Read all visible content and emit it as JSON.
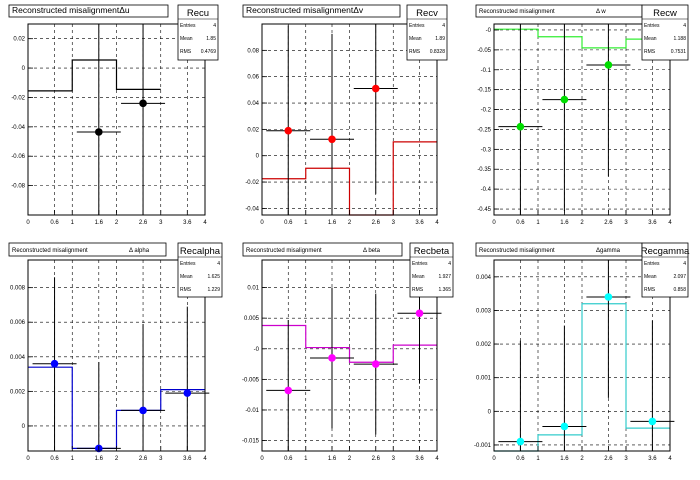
{
  "chart_data": [
    {
      "type": "scatter",
      "title": "Reconstructed misalignmentΔu",
      "stats": {
        "name": "Recu",
        "entries_label": "Entries",
        "entries": "4",
        "mean_label": "Mean",
        "mean": "1.85",
        "rms_label": "RMS",
        "rms": "0.4769"
      },
      "xlim": [
        0,
        4
      ],
      "ylim": [
        -0.1,
        0.03
      ],
      "xticks": [
        "0",
        "0.6",
        "1",
        "1.6",
        "2",
        "2.6",
        "3",
        "3.6",
        "4"
      ],
      "yticks": [
        "0.02",
        "0",
        "-0.02",
        "-0.04",
        "-0.06",
        "-0.08"
      ],
      "ytick_values": [
        0.02,
        0,
        -0.02,
        -0.04,
        -0.06,
        -0.08
      ],
      "hist": {
        "edges": [
          0,
          1,
          2,
          3
        ],
        "values": [
          -0.0155,
          0.0055,
          -0.0145
        ],
        "color": "#000000"
      },
      "points": {
        "x": [
          1.6,
          2.6
        ],
        "y": [
          -0.0435,
          -0.024
        ],
        "yerr": [
          0.1,
          0.1
        ],
        "color": "#000000"
      }
    },
    {
      "type": "scatter",
      "title": "Reconstructed misalignmentΔv",
      "stats": {
        "name": "Recv",
        "entries_label": "Entries",
        "entries": "4",
        "mean_label": "Mean",
        "mean": "1.89",
        "rms_label": "RMS",
        "rms": "0.8328"
      },
      "xlim": [
        0,
        4
      ],
      "ylim": [
        -0.045,
        0.1
      ],
      "xticks": [
        "0",
        "0.6",
        "1",
        "1.6",
        "2",
        "2.6",
        "3",
        "3.6",
        "4"
      ],
      "yticks": [
        "0.08",
        "0.06",
        "0.04",
        "0.02",
        "0",
        "-0.02",
        "-0.04"
      ],
      "ytick_values": [
        0.08,
        0.06,
        0.04,
        0.02,
        0,
        -0.02,
        -0.04
      ],
      "hist": {
        "edges": [
          0,
          1,
          2,
          3,
          4
        ],
        "values": [
          -0.0175,
          -0.0095,
          -0.046,
          0.0105
        ],
        "color": "#cc0000"
      },
      "points": {
        "x": [
          0.6,
          1.6,
          2.6
        ],
        "y": [
          0.019,
          0.0125,
          0.051
        ],
        "yerr": [
          0.08,
          0.08,
          0.08
        ],
        "color": "#ff0000"
      }
    },
    {
      "type": "scatter",
      "title": "Reconstructed misalignment",
      "title_suffix": "Δ w",
      "stats": {
        "name": "Recw",
        "entries_label": "Entries",
        "entries": "4",
        "mean_label": "Mean",
        "mean": "1.188",
        "rms_label": "RMS",
        "rms": "0.7531"
      },
      "xlim": [
        0,
        4
      ],
      "ylim": [
        -0.465,
        0.015
      ],
      "xticks": [
        "0",
        "0.6",
        "1",
        "1.6",
        "2",
        "2.6",
        "3",
        "3.6",
        "4"
      ],
      "yticks": [
        "-0",
        "-0.05",
        "-0.1",
        "-0.15",
        "-0.2",
        "-0.25",
        "-0.3",
        "-0.35",
        "-0.4",
        "-0.45"
      ],
      "ytick_values": [
        0,
        -0.05,
        -0.1,
        -0.15,
        -0.2,
        -0.25,
        -0.3,
        -0.35,
        -0.4,
        -0.45
      ],
      "hist": {
        "edges": [
          0,
          1,
          2,
          3,
          4
        ],
        "values": [
          0.002,
          -0.017,
          -0.045,
          -0.023
        ],
        "color": "#33ee33"
      },
      "points": {
        "x": [
          0.6,
          1.6,
          2.6
        ],
        "y": [
          -0.243,
          -0.175,
          -0.088
        ],
        "yerr": [
          0.28,
          0.28,
          0.28
        ],
        "color": "#00dd00"
      }
    },
    {
      "type": "scatter",
      "title": "Reconstructed misalignment",
      "title_suffix": "Δ alpha",
      "stats": {
        "name": "Recalpha",
        "entries_label": "Entries",
        "entries": "4",
        "mean_label": "Mean",
        "mean": "1.625",
        "rms_label": "RMS",
        "rms": "1.229"
      },
      "xlim": [
        0,
        4
      ],
      "ylim": [
        -0.00145,
        0.0096
      ],
      "xticks": [
        "0",
        "0.6",
        "1",
        "1.6",
        "2",
        "2.6",
        "3",
        "3.6",
        "4"
      ],
      "yticks": [
        "0.008",
        "0.006",
        "0.004",
        "0.002",
        "0"
      ],
      "ytick_values": [
        0.008,
        0.006,
        0.004,
        0.002,
        0
      ],
      "hist": {
        "edges": [
          0,
          1,
          2,
          3,
          4
        ],
        "values": [
          0.0034,
          -0.0013,
          0.0009,
          0.0021
        ],
        "color": "#0000cc"
      },
      "points": {
        "x": [
          0.6,
          1.6,
          2.6,
          3.6
        ],
        "y": [
          0.0036,
          -0.0013,
          0.0009,
          0.0019
        ],
        "yerr": [
          0.005,
          0.005,
          0.005,
          0.005
        ],
        "color": "#0000ff"
      }
    },
    {
      "type": "scatter",
      "title": "Reconstructed misalignment",
      "title_suffix": "Δ beta",
      "stats": {
        "name": "Recbeta",
        "entries_label": "Entries",
        "entries": "4",
        "mean_label": "Mean",
        "mean": "1.927",
        "rms_label": "RMS",
        "rms": "1.365"
      },
      "xlim": [
        0,
        4
      ],
      "ylim": [
        -0.0167,
        0.0145
      ],
      "xticks": [
        "0",
        "0.6",
        "1",
        "1.6",
        "2",
        "2.6",
        "3",
        "3.6",
        "4"
      ],
      "yticks": [
        "0.01",
        "0.005",
        "-0",
        "-0.005",
        "-0.01",
        "-0.015"
      ],
      "ytick_values": [
        0.01,
        0.005,
        0,
        -0.005,
        -0.01,
        -0.015
      ],
      "hist": {
        "edges": [
          0,
          1,
          2,
          3,
          4
        ],
        "values": [
          0.0038,
          0.0002,
          -0.0022,
          0.0006
        ],
        "color": "#cc00cc"
      },
      "points": {
        "x": [
          0.6,
          1.6,
          2.6,
          3.6
        ],
        "y": [
          -0.0068,
          -0.0015,
          -0.0025,
          0.0058
        ],
        "yerr": [
          0.0115,
          0.0115,
          0.0115,
          0.0115
        ],
        "color": "#ff00ff"
      }
    },
    {
      "type": "scatter",
      "title": "Reconstructed misalignment",
      "title_suffix": "Δgamma",
      "stats": {
        "name": "Recgamma",
        "entries_label": "Entries",
        "entries": "4",
        "mean_label": "Mean",
        "mean": "2.097",
        "rms_label": "RMS",
        "rms": "0.858"
      },
      "xlim": [
        0,
        4
      ],
      "ylim": [
        -0.00118,
        0.0045
      ],
      "xticks": [
        "0",
        "0.6",
        "1",
        "1.6",
        "2",
        "2.6",
        "3",
        "3.6",
        "4"
      ],
      "yticks": [
        "0.004",
        "0.003",
        "0.002",
        "0.001",
        "0",
        "-0.001"
      ],
      "ytick_values": [
        0.004,
        0.003,
        0.002,
        0.001,
        0,
        -0.001
      ],
      "hist": {
        "edges": [
          0,
          1,
          2,
          3,
          4
        ],
        "values": [
          -0.00118,
          -0.0007,
          0.0032,
          -0.0005
        ],
        "color": "#33cccc"
      },
      "points": {
        "x": [
          0.6,
          1.6,
          2.6,
          3.6
        ],
        "y": [
          -0.0009,
          -0.00045,
          0.0034,
          -0.0003
        ],
        "yerr": [
          0.003,
          0.003,
          0.003,
          0.003
        ],
        "color": "#00ffff"
      }
    }
  ]
}
